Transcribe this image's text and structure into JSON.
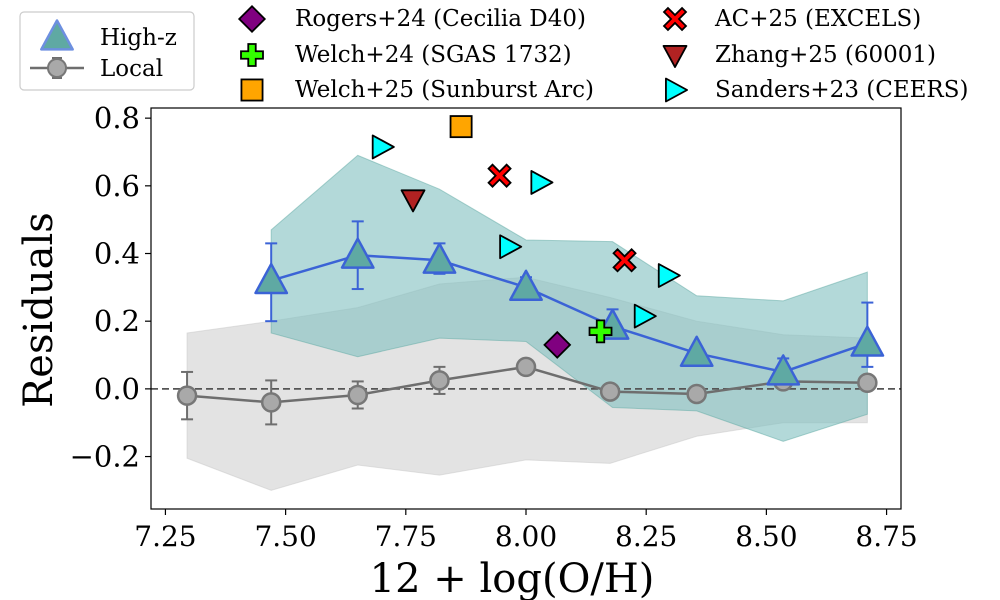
{
  "chart_data": {
    "type": "scatter",
    "xlabel": "12 + log(O/H)",
    "ylabel": "Residuals",
    "xlim": [
      7.22,
      8.78
    ],
    "ylim": [
      -0.355,
      0.83
    ],
    "x_ticks": [
      7.25,
      7.5,
      7.75,
      8.0,
      8.25,
      8.5,
      8.75
    ],
    "x_tick_labels": [
      "7.25",
      "7.50",
      "7.75",
      "8.00",
      "8.25",
      "8.50",
      "8.75"
    ],
    "y_ticks": [
      -0.2,
      0.0,
      0.2,
      0.4,
      0.6,
      0.8
    ],
    "y_tick_labels": [
      "−0.2",
      "0.0",
      "0.2",
      "0.4",
      "0.6",
      "0.8"
    ],
    "reference_line": {
      "y": 0.0,
      "style": "dashed"
    },
    "colors": {
      "highz_line": "#3b63d6",
      "highz_marker": "#5fa9a3",
      "highz_band": "#80bfbf",
      "local_line": "#6e6e6e",
      "local_marker": "#a9a9a9",
      "local_band": "#c8c8c8"
    },
    "series": [
      {
        "name": "High-z",
        "kind": "binned",
        "marker": "triangle-up",
        "x": [
          7.47,
          7.65,
          7.82,
          8.0,
          8.18,
          8.355,
          8.535,
          8.71
        ],
        "y": [
          0.32,
          0.395,
          0.38,
          0.3,
          0.185,
          0.105,
          0.05,
          0.135
        ],
        "yerr_low": [
          0.12,
          0.1,
          0.04,
          0.02,
          0.03,
          0.02,
          0.03,
          0.07
        ],
        "yerr_high": [
          0.11,
          0.1,
          0.05,
          0.03,
          0.05,
          0.02,
          0.04,
          0.12
        ],
        "band_low": [
          0.165,
          0.095,
          0.15,
          0.14,
          -0.055,
          -0.065,
          -0.155,
          -0.075
        ],
        "band_high": [
          0.47,
          0.69,
          0.59,
          0.44,
          0.435,
          0.275,
          0.26,
          0.345
        ]
      },
      {
        "name": "Local",
        "kind": "binned",
        "marker": "circle",
        "x": [
          7.295,
          7.47,
          7.65,
          7.82,
          8.0,
          8.175,
          8.355,
          8.535,
          8.71
        ],
        "y": [
          -0.02,
          -0.04,
          -0.018,
          0.025,
          0.065,
          -0.008,
          -0.015,
          0.022,
          0.018
        ],
        "yerr_low": [
          0.07,
          0.065,
          0.04,
          0.04,
          0.0,
          0.0,
          0.0,
          0.0,
          0.0
        ],
        "yerr_high": [
          0.07,
          0.065,
          0.04,
          0.04,
          0.0,
          0.0,
          0.0,
          0.0,
          0.0
        ],
        "band_low": [
          -0.205,
          -0.3,
          -0.225,
          -0.255,
          -0.21,
          -0.22,
          -0.14,
          -0.1,
          -0.1
        ],
        "band_high": [
          0.165,
          0.2,
          0.24,
          0.31,
          0.33,
          0.27,
          0.2,
          0.16,
          0.15
        ]
      }
    ],
    "individual_objects": [
      {
        "name": "Rogers+24 (Cecilia D40)",
        "marker": "diamond",
        "color": "#800080",
        "points": [
          [
            8.065,
            0.13
          ]
        ]
      },
      {
        "name": "Welch+24 (SGAS 1732)",
        "marker": "plus",
        "color": "#33ff00",
        "points": [
          [
            8.155,
            0.17
          ]
        ]
      },
      {
        "name": "Welch+25 (Sunburst Arc)",
        "marker": "square",
        "color": "#ffa500",
        "points": [
          [
            7.865,
            0.775
          ]
        ]
      },
      {
        "name": "AC+25 (EXCELS)",
        "marker": "x",
        "color": "#ff0000",
        "points": [
          [
            7.945,
            0.63
          ],
          [
            8.205,
            0.38
          ]
        ]
      },
      {
        "name": "Zhang+25 (60001)",
        "marker": "triangle-down",
        "color": "#b22222",
        "points": [
          [
            7.765,
            0.56
          ]
        ]
      },
      {
        "name": "Sanders+23 (CEERS)",
        "marker": "triangle-right",
        "color": "#00ffff",
        "points": [
          [
            7.7,
            0.715
          ],
          [
            8.03,
            0.61
          ],
          [
            7.965,
            0.42
          ],
          [
            8.295,
            0.335
          ],
          [
            8.245,
            0.215
          ]
        ]
      }
    ],
    "legend": {
      "main_entries": [
        "High-z",
        "Local"
      ],
      "placement": "top-left, outside axes",
      "objects_placement": "top, outside axes, two columns"
    }
  }
}
